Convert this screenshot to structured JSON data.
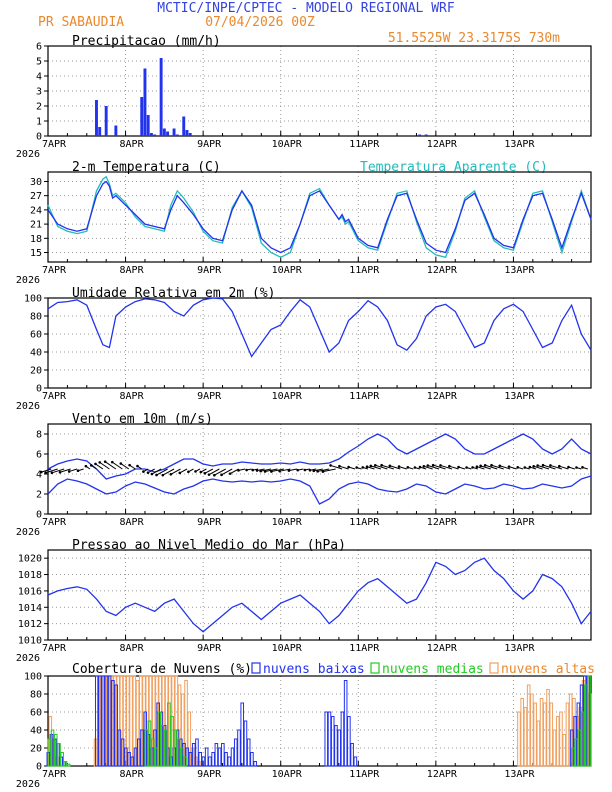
{
  "header": {
    "title": "MCTIC/INPE/CPTEC - MODELO REGIONAL WRF",
    "location": "PR SABAUDIA",
    "run": "07/04/2026 00Z",
    "coords": "51.5525W 23.3175S 730m"
  },
  "x_axis": {
    "ticks": [
      "7APR",
      "8APR",
      "9APR",
      "10APR",
      "11APR",
      "12APR",
      "13APR"
    ],
    "year": "2026",
    "range_hours": [
      0,
      168
    ]
  },
  "colors": {
    "blue": "#2233ee",
    "cyan": "#22bbbb",
    "green": "#22cc22",
    "orange": "#f0a060",
    "grid": "#9a9a9a",
    "header_blue": "#3344dd",
    "header_orange": "#e8892e"
  },
  "panels": {
    "precip": {
      "title": "Precipitacao (mm/h)",
      "yticks": [
        "0",
        "1",
        "2",
        "3",
        "4",
        "5",
        "6"
      ]
    },
    "temp": {
      "title": "2-m Temperatura (C)",
      "legend_apparent": "Temperatura Aparente (C)",
      "yticks": [
        "15",
        "18",
        "21",
        "24",
        "27",
        "30"
      ]
    },
    "rh": {
      "title": "Umidade Relativa em 2m (%)",
      "yticks": [
        "0",
        "20",
        "40",
        "60",
        "80",
        "100"
      ]
    },
    "wind": {
      "title": "Vento em 10m (m/s)",
      "yticks": [
        "0",
        "2",
        "4",
        "6",
        "8"
      ]
    },
    "mslp": {
      "title": "Pressao ao Nivel Medio do Mar (hPa)",
      "yticks": [
        "1010",
        "1012",
        "1014",
        "1016",
        "1018",
        "1020"
      ]
    },
    "clouds": {
      "title": "Cobertura de Nuvens (%)",
      "legend_low": "nuvens baixas",
      "legend_mid": "nuvens medias",
      "legend_high": "nuvens altas",
      "yticks": [
        "0",
        "20",
        "40",
        "60",
        "80",
        "100"
      ]
    }
  },
  "chart_data": [
    {
      "type": "bar",
      "name": "precip",
      "title": "Precipitacao (mm/h)",
      "ylim": [
        0,
        6
      ],
      "x_hours": [
        15,
        16,
        18,
        21,
        29,
        30,
        31,
        32,
        33,
        35,
        36,
        37,
        39,
        40,
        42,
        43,
        44,
        115,
        117
      ],
      "values": [
        2.4,
        0.6,
        2.0,
        0.7,
        2.6,
        4.5,
        1.4,
        0.2,
        0.1,
        5.2,
        0.5,
        0.3,
        0.5,
        0.1,
        1.3,
        0.4,
        0.2,
        0.1,
        0.1
      ]
    },
    {
      "type": "line",
      "name": "temp",
      "title": "2-m Temperatura (C)",
      "ylim": [
        13,
        32
      ],
      "x_hours": [
        0,
        3,
        6,
        9,
        12,
        15,
        17,
        18,
        19,
        20,
        21,
        24,
        27,
        30,
        33,
        36,
        38,
        40,
        42,
        45,
        48,
        51,
        54,
        57,
        60,
        63,
        66,
        69,
        72,
        75,
        78,
        81,
        84,
        87,
        90,
        91,
        92,
        93,
        96,
        99,
        102,
        105,
        108,
        111,
        114,
        117,
        120,
        123,
        126,
        129,
        132,
        135,
        138,
        141,
        144,
        147,
        150,
        153,
        156,
        159,
        162,
        165,
        168
      ],
      "series": [
        {
          "name": "2-m Temperatura (C)",
          "values": [
            24,
            21,
            20,
            19.5,
            20,
            27,
            29.5,
            30,
            29,
            26.5,
            27,
            25,
            23,
            21,
            20.5,
            20,
            24,
            27,
            25.5,
            23,
            20,
            18,
            17.5,
            24,
            28,
            25,
            18,
            16,
            15,
            16,
            21,
            27,
            28,
            25,
            22,
            23,
            21.5,
            22,
            18,
            16.5,
            16,
            22,
            27,
            27.5,
            22,
            17,
            15.5,
            15,
            20,
            26,
            27.5,
            23,
            18,
            16.5,
            16,
            22,
            27,
            27.5,
            22,
            16,
            22,
            27.5,
            22
          ]
        },
        {
          "name": "Temperatura Aparente (C)",
          "values": [
            25,
            20.5,
            19.5,
            19,
            19.5,
            28,
            30.5,
            31,
            29.5,
            27,
            27.5,
            25.5,
            22.5,
            20.5,
            20,
            19.5,
            25,
            28,
            26.5,
            23.5,
            19.5,
            17.5,
            17,
            24.5,
            28,
            24.5,
            17,
            15,
            14,
            15,
            21,
            27.5,
            28.5,
            25,
            22,
            22.5,
            21,
            21.5,
            17.5,
            16,
            15.5,
            21.5,
            27.5,
            28,
            21.5,
            16,
            14.5,
            14,
            19.5,
            26.5,
            28,
            22.5,
            17.5,
            16,
            15.5,
            21.5,
            27.5,
            28,
            21.5,
            15,
            21.5,
            28,
            22
          ]
        }
      ]
    },
    {
      "type": "line",
      "name": "rh",
      "title": "Umidade Relativa em 2m (%)",
      "ylim": [
        0,
        100
      ],
      "x_hours": [
        0,
        3,
        6,
        9,
        12,
        15,
        17,
        19,
        21,
        24,
        27,
        30,
        33,
        36,
        39,
        42,
        45,
        48,
        51,
        54,
        57,
        60,
        63,
        66,
        69,
        72,
        75,
        78,
        81,
        84,
        87,
        90,
        93,
        96,
        99,
        102,
        105,
        108,
        111,
        114,
        117,
        120,
        123,
        126,
        129,
        132,
        135,
        138,
        141,
        144,
        147,
        150,
        153,
        156,
        159,
        162,
        165,
        168
      ],
      "series": [
        {
          "name": "rh",
          "values": [
            88,
            95,
            96,
            98,
            92,
            65,
            48,
            45,
            80,
            90,
            96,
            99,
            98,
            95,
            85,
            80,
            92,
            98,
            100,
            99,
            85,
            60,
            35,
            50,
            65,
            70,
            85,
            98,
            90,
            65,
            40,
            50,
            75,
            85,
            97,
            90,
            75,
            48,
            42,
            55,
            80,
            90,
            93,
            85,
            65,
            45,
            50,
            75,
            88,
            93,
            85,
            65,
            45,
            50,
            75,
            92,
            60,
            42
          ]
        }
      ]
    },
    {
      "type": "line",
      "name": "wind",
      "title": "Vento em 10m (m/s)",
      "ylim": [
        0,
        9
      ],
      "x_hours": [
        0,
        3,
        6,
        9,
        12,
        15,
        18,
        21,
        24,
        27,
        30,
        33,
        36,
        39,
        42,
        45,
        48,
        51,
        54,
        57,
        60,
        63,
        66,
        69,
        72,
        75,
        78,
        81,
        84,
        87,
        90,
        93,
        96,
        99,
        102,
        105,
        108,
        111,
        114,
        117,
        120,
        123,
        126,
        129,
        132,
        135,
        138,
        141,
        144,
        147,
        150,
        153,
        156,
        159,
        162,
        165,
        168
      ],
      "series": [
        {
          "name": "upper",
          "values": [
            4.5,
            5,
            5.3,
            5.5,
            5.3,
            4.5,
            3.5,
            3.8,
            4,
            4.5,
            4.5,
            4.2,
            4.5,
            5,
            5.5,
            5.5,
            5,
            4.8,
            5,
            5,
            5.2,
            5.1,
            5,
            5,
            5.1,
            5,
            5.2,
            5,
            5,
            5.1,
            5.5,
            6.2,
            6.8,
            7.5,
            8,
            7.5,
            6.5,
            6,
            6.5,
            7,
            7.5,
            8,
            7.5,
            6.5,
            6,
            6,
            6.5,
            7,
            7.5,
            8,
            7.5,
            6.5,
            6,
            6.5,
            7.5,
            6.5,
            6
          ]
        },
        {
          "name": "lower",
          "values": [
            2,
            3,
            3.5,
            3.3,
            3,
            2.5,
            2,
            2.2,
            2.8,
            3.2,
            3,
            2.6,
            2.2,
            2,
            2.5,
            2.8,
            3.3,
            3.5,
            3.3,
            3.2,
            3.3,
            3.2,
            3.3,
            3.2,
            3.3,
            3.5,
            3.3,
            2.8,
            1,
            1.5,
            2.5,
            3,
            3.2,
            3,
            2.5,
            2.3,
            2.2,
            2.5,
            3,
            2.8,
            2.2,
            2,
            2.5,
            3,
            2.8,
            2.5,
            2.6,
            3,
            2.8,
            2.5,
            2.6,
            3,
            2.8,
            2.6,
            2.8,
            3.5,
            3.8
          ]
        }
      ]
    },
    {
      "type": "line",
      "name": "mslp",
      "title": "Pressao ao Nivel Medio do Mar (hPa)",
      "ylim": [
        1010,
        1021
      ],
      "x_hours": [
        0,
        3,
        6,
        9,
        12,
        15,
        18,
        21,
        24,
        27,
        30,
        33,
        36,
        39,
        42,
        45,
        48,
        51,
        54,
        57,
        60,
        63,
        66,
        69,
        72,
        75,
        78,
        81,
        84,
        87,
        90,
        93,
        96,
        99,
        102,
        105,
        108,
        111,
        114,
        117,
        120,
        123,
        126,
        129,
        132,
        135,
        138,
        141,
        144,
        147,
        150,
        153,
        156,
        159,
        162,
        165,
        168
      ],
      "series": [
        {
          "name": "mslp",
          "values": [
            1015.5,
            1016,
            1016.3,
            1016.5,
            1016.2,
            1015,
            1013.5,
            1013,
            1014,
            1014.5,
            1014,
            1013.5,
            1014.5,
            1015,
            1013.5,
            1012,
            1011,
            1012,
            1013,
            1014,
            1014.5,
            1013.5,
            1012.5,
            1013.5,
            1014.5,
            1015,
            1015.5,
            1014.5,
            1013.5,
            1012,
            1013,
            1014.5,
            1016,
            1017,
            1017.5,
            1016.5,
            1015.5,
            1014.5,
            1015,
            1017,
            1019.5,
            1019,
            1018,
            1018.5,
            1019.5,
            1020,
            1018.5,
            1017.5,
            1016,
            1015,
            1016,
            1018,
            1017.5,
            1016.5,
            1014.5,
            1012,
            1013.5
          ]
        }
      ]
    },
    {
      "type": "bar",
      "name": "clouds",
      "title": "Cobertura de Nuvens (%)",
      "ylim": [
        0,
        100
      ],
      "series": [
        {
          "name": "nuvens baixas",
          "x_hours": [
            0,
            1,
            2,
            3,
            4,
            5,
            15,
            16,
            17,
            18,
            19,
            20,
            21,
            22,
            23,
            24,
            25,
            26,
            27,
            28,
            29,
            30,
            31,
            32,
            33,
            34,
            35,
            36,
            37,
            38,
            39,
            40,
            41,
            42,
            43,
            44,
            45,
            46,
            47,
            48,
            49,
            50,
            51,
            52,
            53,
            54,
            55,
            56,
            57,
            58,
            59,
            60,
            61,
            62,
            63,
            64,
            86,
            87,
            88,
            89,
            90,
            91,
            92,
            93,
            94,
            95,
            162,
            163,
            164,
            165,
            166,
            167
          ],
          "values": [
            15,
            35,
            30,
            25,
            10,
            5,
            100,
            100,
            100,
            100,
            100,
            95,
            90,
            40,
            30,
            20,
            15,
            10,
            20,
            30,
            40,
            60,
            35,
            20,
            40,
            70,
            60,
            45,
            20,
            10,
            20,
            40,
            30,
            25,
            20,
            15,
            25,
            30,
            15,
            10,
            20,
            10,
            15,
            25,
            20,
            25,
            15,
            10,
            20,
            30,
            40,
            70,
            50,
            30,
            15,
            5,
            60,
            60,
            55,
            45,
            40,
            60,
            95,
            55,
            25,
            10,
            40,
            55,
            70,
            90,
            100,
            100
          ]
        },
        {
          "name": "nuvens medias",
          "x_hours": [
            0,
            1,
            2,
            3,
            4,
            5,
            6,
            30,
            31,
            32,
            33,
            34,
            35,
            36,
            37,
            38,
            39,
            40,
            41,
            42,
            162,
            163,
            164,
            165,
            166,
            167
          ],
          "values": [
            30,
            40,
            35,
            25,
            15,
            5,
            2,
            40,
            50,
            30,
            20,
            60,
            45,
            40,
            70,
            55,
            40,
            30,
            20,
            10,
            20,
            30,
            40,
            60,
            90,
            100
          ]
        },
        {
          "name": "nuvens altas",
          "x_hours": [
            0,
            1,
            2,
            14,
            15,
            16,
            17,
            18,
            19,
            20,
            21,
            22,
            23,
            24,
            25,
            26,
            27,
            28,
            29,
            30,
            31,
            32,
            33,
            34,
            35,
            36,
            37,
            38,
            39,
            40,
            41,
            42,
            43,
            44,
            45,
            46,
            145,
            146,
            147,
            148,
            149,
            150,
            151,
            152,
            153,
            154,
            155,
            156,
            157,
            158,
            159,
            160,
            161,
            162,
            163,
            164,
            165,
            166,
            167
          ],
          "values": [
            55,
            30,
            10,
            30,
            100,
            100,
            100,
            100,
            100,
            100,
            100,
            100,
            100,
            100,
            100,
            100,
            95,
            100,
            100,
            100,
            100,
            100,
            100,
            100,
            100,
            100,
            100,
            100,
            100,
            90,
            80,
            95,
            60,
            20,
            10,
            5,
            60,
            75,
            65,
            90,
            80,
            70,
            50,
            75,
            70,
            85,
            70,
            40,
            55,
            60,
            35,
            70,
            80,
            75,
            55,
            65,
            95,
            100,
            80
          ]
        }
      ]
    }
  ]
}
